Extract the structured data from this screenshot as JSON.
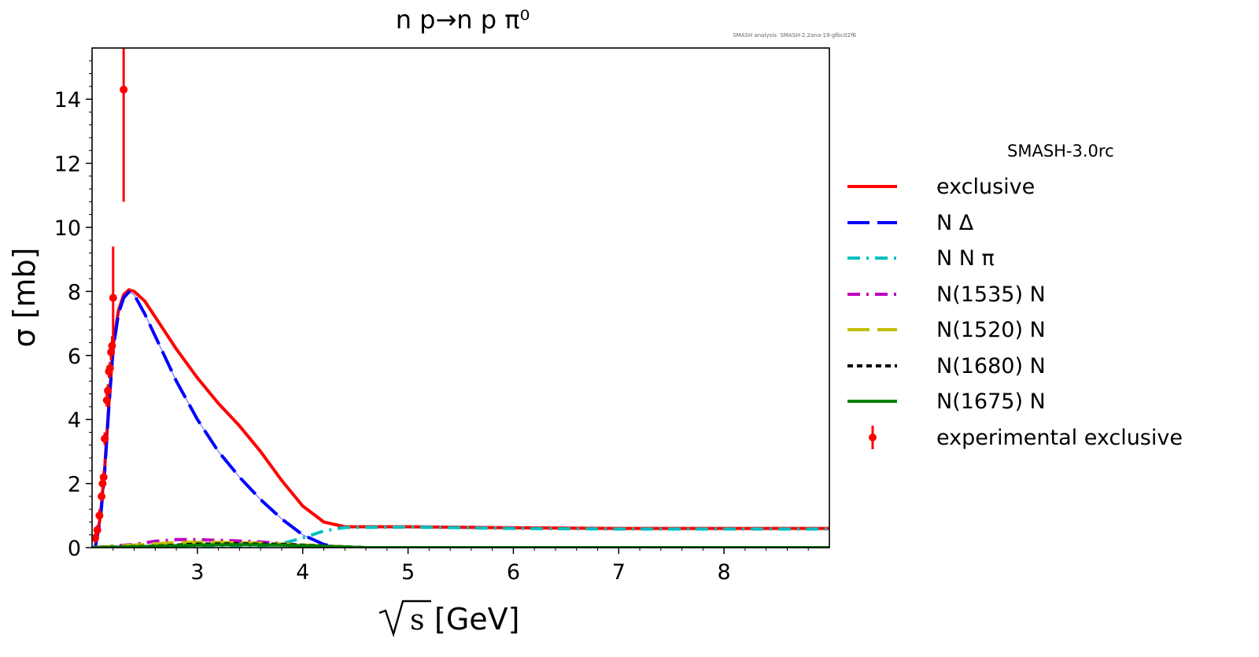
{
  "chart_data": {
    "type": "line",
    "title": "n p→n p π⁰",
    "watermark": "SMASH analysis: SMASH-2.2ana-19-gfbc02f6",
    "xlabel_symbol": "s",
    "xlabel_unit": "[GeV]",
    "ylabel": "σ [mb]",
    "xlim": [
      2.0,
      9.0
    ],
    "ylim": [
      0,
      15.6
    ],
    "x_ticks": [
      3,
      4,
      5,
      6,
      7,
      8
    ],
    "x_tick_labels": [
      "3",
      "4",
      "5",
      "6",
      "7",
      "8"
    ],
    "y_ticks": [
      0,
      2,
      4,
      6,
      8,
      10,
      12,
      14
    ],
    "y_tick_labels": [
      "0",
      "2",
      "4",
      "6",
      "8",
      "10",
      "12",
      "14"
    ],
    "legend_title": "SMASH-3.0rc",
    "legend_position": "outside-right",
    "series": [
      {
        "name": "exclusive",
        "color": "#ff0000",
        "style": "solid",
        "x": [
          2.03,
          2.08,
          2.12,
          2.16,
          2.2,
          2.25,
          2.3,
          2.35,
          2.4,
          2.5,
          2.6,
          2.8,
          3.0,
          3.2,
          3.4,
          3.6,
          3.8,
          4.0,
          4.2,
          4.4,
          5.0,
          6.0,
          7.0,
          8.0,
          9.0
        ],
        "y": [
          0.0,
          1.0,
          2.5,
          4.5,
          6.3,
          7.4,
          7.9,
          8.05,
          8.0,
          7.7,
          7.2,
          6.2,
          5.3,
          4.5,
          3.8,
          3.0,
          2.1,
          1.3,
          0.8,
          0.65,
          0.65,
          0.62,
          0.6,
          0.6,
          0.6
        ]
      },
      {
        "name": "N Δ",
        "color": "#0000ff",
        "style": "longdash",
        "x": [
          2.03,
          2.08,
          2.12,
          2.16,
          2.2,
          2.25,
          2.3,
          2.35,
          2.4,
          2.5,
          2.6,
          2.8,
          3.0,
          3.2,
          3.4,
          3.6,
          3.8,
          4.0,
          4.2,
          4.35,
          5.0,
          9.0
        ],
        "y": [
          0.0,
          0.9,
          2.4,
          4.4,
          6.2,
          7.3,
          7.8,
          7.98,
          7.9,
          7.3,
          6.6,
          5.2,
          4.0,
          3.0,
          2.2,
          1.5,
          0.9,
          0.4,
          0.1,
          0.0,
          0.0,
          0.0
        ]
      },
      {
        "name": "N N π",
        "color": "#00bfbf",
        "style": "dashdot",
        "x": [
          2.0,
          3.0,
          3.5,
          3.8,
          4.0,
          4.2,
          4.4,
          5.0,
          6.0,
          7.0,
          8.0,
          9.0
        ],
        "y": [
          0.0,
          0.0,
          0.03,
          0.12,
          0.3,
          0.52,
          0.63,
          0.64,
          0.6,
          0.58,
          0.58,
          0.58
        ]
      },
      {
        "name": "N(1535) N",
        "color": "#bf00bf",
        "style": "dashdot",
        "x": [
          2.0,
          2.4,
          2.6,
          2.8,
          3.0,
          3.3,
          3.6,
          3.9,
          4.2,
          4.5,
          9.0
        ],
        "y": [
          0.0,
          0.1,
          0.2,
          0.25,
          0.25,
          0.22,
          0.18,
          0.1,
          0.03,
          0.0,
          0.0
        ]
      },
      {
        "name": "N(1520) N",
        "color": "#bfbf00",
        "style": "longdash",
        "x": [
          2.0,
          2.5,
          2.8,
          3.1,
          3.5,
          3.9,
          4.3,
          4.6,
          9.0
        ],
        "y": [
          0.0,
          0.1,
          0.16,
          0.17,
          0.15,
          0.1,
          0.04,
          0.0,
          0.0
        ]
      },
      {
        "name": "N(1680) N",
        "color": "#000000",
        "style": "shortdash",
        "x": [
          2.0,
          2.6,
          3.0,
          3.4,
          3.8,
          4.2,
          4.6,
          9.0
        ],
        "y": [
          0.0,
          0.05,
          0.11,
          0.12,
          0.1,
          0.05,
          0.0,
          0.0
        ]
      },
      {
        "name": "N(1675) N",
        "color": "#008000",
        "style": "solid",
        "x": [
          2.0,
          2.6,
          3.0,
          3.4,
          3.8,
          4.2,
          4.6,
          9.0
        ],
        "y": [
          0.0,
          0.04,
          0.08,
          0.09,
          0.08,
          0.04,
          0.0,
          0.0
        ]
      }
    ],
    "experimental": {
      "name": "experimental exclusive",
      "color": "#ff0000",
      "points": [
        {
          "x": 2.03,
          "y": 0.3,
          "err": 0.15
        },
        {
          "x": 2.05,
          "y": 0.55,
          "err": 0.15
        },
        {
          "x": 2.07,
          "y": 1.0,
          "err": 0.2
        },
        {
          "x": 2.09,
          "y": 1.6,
          "err": 0.15
        },
        {
          "x": 2.1,
          "y": 2.0,
          "err": 0.2
        },
        {
          "x": 2.11,
          "y": 2.2,
          "err": 0.2
        },
        {
          "x": 2.12,
          "y": 3.4,
          "err": 0.2
        },
        {
          "x": 2.14,
          "y": 4.6,
          "err": 0.2
        },
        {
          "x": 2.15,
          "y": 4.9,
          "err": 0.2
        },
        {
          "x": 2.16,
          "y": 5.5,
          "err": 0.2
        },
        {
          "x": 2.17,
          "y": 5.6,
          "err": 0.2
        },
        {
          "x": 2.18,
          "y": 6.1,
          "err": 0.25
        },
        {
          "x": 2.19,
          "y": 6.3,
          "err": 0.3
        },
        {
          "x": 2.2,
          "y": 7.8,
          "err": 1.6
        },
        {
          "x": 2.3,
          "y": 14.3,
          "err": 3.5
        }
      ]
    }
  }
}
